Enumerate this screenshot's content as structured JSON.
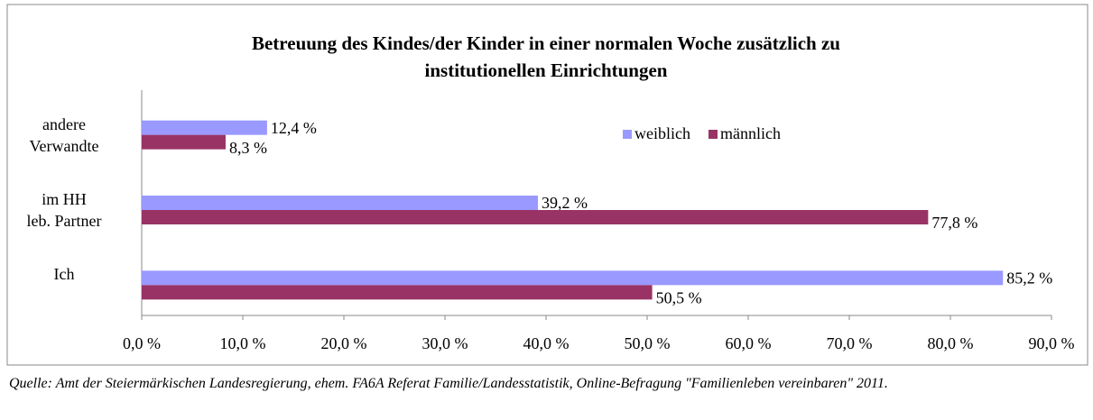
{
  "chart_data": {
    "type": "barh",
    "title": "Betreuung des Kindes/der Kinder in einer normalen Woche zusätzlich zu\ninstitutionellen Einrichtungen",
    "categories": [
      "andere\nVerwandte",
      "im HH\nleb. Partner",
      "Ich"
    ],
    "series": [
      {
        "name": "weiblich",
        "color": "#9999ff",
        "values": [
          12.4,
          39.2,
          85.2
        ],
        "value_labels": [
          "12,4 %",
          "39,2 %",
          "85,2 %"
        ]
      },
      {
        "name": "männlich",
        "color": "#993366",
        "values": [
          8.3,
          77.8,
          50.5
        ],
        "value_labels": [
          "8,3 %",
          "77,8 %",
          "50,5 %"
        ]
      }
    ],
    "xlim": [
      0,
      90
    ],
    "xticks": [
      {
        "value": 0,
        "label": "0,0 %"
      },
      {
        "value": 10,
        "label": "10,0 %"
      },
      {
        "value": 20,
        "label": "20,0 %"
      },
      {
        "value": 30,
        "label": "30,0 %"
      },
      {
        "value": 40,
        "label": "40,0 %"
      },
      {
        "value": 50,
        "label": "50,0 %"
      },
      {
        "value": 60,
        "label": "60,0 %"
      },
      {
        "value": 70,
        "label": "70,0 %"
      },
      {
        "value": 80,
        "label": "80,0 %"
      },
      {
        "value": 90,
        "label": "90,0 %"
      }
    ],
    "legend": "top-right",
    "source": "Quelle: Amt der Steiermärkischen Landesregierung, ehem. FA6A Referat Familie/Landesstatistik, Online-Befragung \"Familienleben vereinbaren\" 2011."
  }
}
